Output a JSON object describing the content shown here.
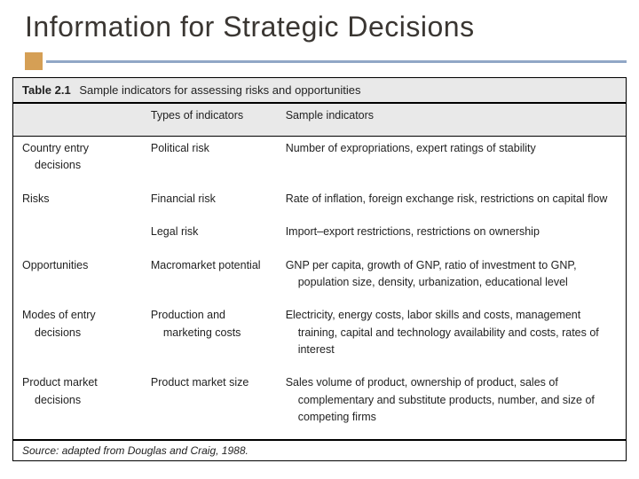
{
  "colors": {
    "title_text": "#3a3632",
    "accent_block": "#d59f55",
    "accent_line": "#91a7c6",
    "header_bg": "#e9e9e9",
    "border": "#000000",
    "body_text": "#222222",
    "page_bg": "#ffffff"
  },
  "typography": {
    "title_fontsize_pt": 24,
    "body_fontsize_pt": 10,
    "title_font_family": "Gill Sans / Century Gothic",
    "body_font_family": "Arial / Helvetica"
  },
  "slide": {
    "title": "Information for Strategic Decisions"
  },
  "table": {
    "number": "Table 2.1",
    "caption": "Sample indicators for assessing risks and opportunities",
    "columns": {
      "a_header": "",
      "b_header": "Types of indicators",
      "c_header": "Sample indicators",
      "widths_pct": [
        21,
        22,
        57
      ]
    },
    "rows": [
      {
        "a": "Country entry decisions",
        "b": "Political risk",
        "c": "Number of expropriations, expert ratings of stability"
      },
      {
        "a": "Risks",
        "b": "Financial risk",
        "c": "Rate of inflation, foreign exchange risk, restrictions on capital flow"
      },
      {
        "a": "",
        "b": "Legal risk",
        "c": "Import–export restrictions, restrictions on ownership"
      },
      {
        "a": "Opportunities",
        "b": "Macromarket potential",
        "c": "GNP per capita, growth of GNP, ratio of investment to GNP, population size, density, urbanization, educational level"
      },
      {
        "a": "Modes of entry decisions",
        "b": "Production and marketing costs",
        "c": "Electricity, energy costs, labor skills and costs, management training, capital and technology availability and costs, rates of interest"
      },
      {
        "a": "Product market decisions",
        "b": "Product market size",
        "c": "Sales volume of product, ownership of product, sales of complementary and substitute products, number, and size of competing firms"
      }
    ],
    "source_label": "Source:",
    "source_text": "adapted from Douglas and Craig, 1988."
  }
}
